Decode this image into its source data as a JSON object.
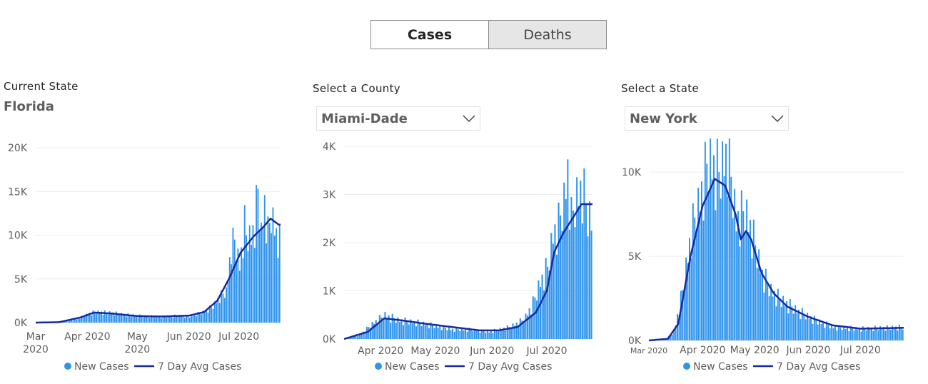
{
  "tabs": {
    "cases": "Cases",
    "deaths": "Deaths"
  },
  "panels": {
    "florida": {
      "label": "Current State",
      "value": "Florida"
    },
    "county": {
      "label": "Select a County",
      "value": "Miami-Dade"
    },
    "state": {
      "label": "Select a State",
      "value": "New York"
    }
  },
  "legend": {
    "bars": "New Cases",
    "line": "7 Day Avg Cases"
  },
  "colors": {
    "bar": "#2f94ec",
    "line": "#162a9e",
    "grid": "#ececec"
  },
  "chart_data": [
    {
      "type": "bar",
      "title": "",
      "start_date": "2020-03-01",
      "end_date": "2020-07-25",
      "ylim": [
        0,
        20000
      ],
      "yticks": [
        0,
        5000,
        10000,
        15000,
        20000
      ],
      "ytick_labels": [
        "0K",
        "5K",
        "10K",
        "15K",
        "20K"
      ],
      "xticks": [
        {
          "date": "2020-03-01",
          "label": [
            "Mar",
            "2020"
          ]
        },
        {
          "date": "2020-04-01",
          "label": [
            "Apr 2020"
          ]
        },
        {
          "date": "2020-05-01",
          "label": [
            "May",
            "2020"
          ]
        },
        {
          "date": "2020-06-01",
          "label": [
            "Jun 2020"
          ]
        },
        {
          "date": "2020-07-01",
          "label": [
            "Jul 2020"
          ]
        }
      ],
      "series": [
        {
          "name": "New Cases",
          "kind": "bar",
          "points": [
            [
              "2020-03-01",
              0
            ],
            [
              "2020-03-15",
              30
            ],
            [
              "2020-03-25",
              400
            ],
            [
              "2020-04-01",
              1000
            ],
            [
              "2020-04-05",
              1250
            ],
            [
              "2020-04-15",
              1150
            ],
            [
              "2020-04-25",
              900
            ],
            [
              "2020-05-05",
              750
            ],
            [
              "2020-05-15",
              700
            ],
            [
              "2020-05-25",
              800
            ],
            [
              "2020-06-01",
              700
            ],
            [
              "2020-06-10",
              1300
            ],
            [
              "2020-06-15",
              1900
            ],
            [
              "2020-06-19",
              3000
            ],
            [
              "2020-06-23",
              3600
            ],
            [
              "2020-06-26",
              8900
            ],
            [
              "2020-06-28",
              9500
            ],
            [
              "2020-07-01",
              6600
            ],
            [
              "2020-07-04",
              11400
            ],
            [
              "2020-07-05",
              10000
            ],
            [
              "2020-07-08",
              9900
            ],
            [
              "2020-07-10",
              11400
            ],
            [
              "2020-07-12",
              15300
            ],
            [
              "2020-07-14",
              10200
            ],
            [
              "2020-07-16",
              13900
            ],
            [
              "2020-07-18",
              10300
            ],
            [
              "2020-07-20",
              12500
            ],
            [
              "2020-07-23",
              10300
            ],
            [
              "2020-07-25",
              9400
            ]
          ]
        },
        {
          "name": "7 Day Avg Cases",
          "kind": "line",
          "points": [
            [
              "2020-03-01",
              0
            ],
            [
              "2020-03-15",
              50
            ],
            [
              "2020-03-28",
              600
            ],
            [
              "2020-04-05",
              1150
            ],
            [
              "2020-04-15",
              1050
            ],
            [
              "2020-05-01",
              750
            ],
            [
              "2020-05-15",
              700
            ],
            [
              "2020-06-01",
              800
            ],
            [
              "2020-06-10",
              1200
            ],
            [
              "2020-06-18",
              2500
            ],
            [
              "2020-06-25",
              5000
            ],
            [
              "2020-07-02",
              8000
            ],
            [
              "2020-07-10",
              9900
            ],
            [
              "2020-07-16",
              11000
            ],
            [
              "2020-07-20",
              11900
            ],
            [
              "2020-07-25",
              11200
            ]
          ]
        }
      ]
    },
    {
      "type": "bar",
      "title": "",
      "start_date": "2020-03-12",
      "end_date": "2020-07-25",
      "ylim": [
        0,
        4000
      ],
      "yticks": [
        0,
        1000,
        2000,
        3000,
        4000
      ],
      "ytick_labels": [
        "0K",
        "1K",
        "2K",
        "3K",
        "4K"
      ],
      "xticks": [
        {
          "date": "2020-04-01",
          "label": [
            "Apr 2020"
          ]
        },
        {
          "date": "2020-05-01",
          "label": [
            "May 2020"
          ]
        },
        {
          "date": "2020-06-01",
          "label": [
            "Jun 2020"
          ]
        },
        {
          "date": "2020-07-01",
          "label": [
            "Jul 2020"
          ]
        }
      ],
      "series": [
        {
          "name": "New Cases",
          "kind": "bar",
          "points": [
            [
              "2020-03-12",
              0
            ],
            [
              "2020-03-20",
              80
            ],
            [
              "2020-03-28",
              350
            ],
            [
              "2020-04-03",
              500
            ],
            [
              "2020-04-10",
              400
            ],
            [
              "2020-04-20",
              350
            ],
            [
              "2020-04-30",
              280
            ],
            [
              "2020-05-10",
              200
            ],
            [
              "2020-05-20",
              200
            ],
            [
              "2020-05-30",
              150
            ],
            [
              "2020-06-10",
              250
            ],
            [
              "2020-06-18",
              400
            ],
            [
              "2020-06-23",
              750
            ],
            [
              "2020-06-27",
              1200
            ],
            [
              "2020-07-01",
              1500
            ],
            [
              "2020-07-04",
              2200
            ],
            [
              "2020-07-07",
              2400
            ],
            [
              "2020-07-10",
              2900
            ],
            [
              "2020-07-12",
              3550
            ],
            [
              "2020-07-14",
              2500
            ],
            [
              "2020-07-17",
              3000
            ],
            [
              "2020-07-20",
              3200
            ],
            [
              "2020-07-23",
              2600
            ],
            [
              "2020-07-25",
              2500
            ]
          ]
        },
        {
          "name": "7 Day Avg Cases",
          "kind": "line",
          "points": [
            [
              "2020-03-12",
              0
            ],
            [
              "2020-03-25",
              150
            ],
            [
              "2020-04-03",
              430
            ],
            [
              "2020-04-12",
              390
            ],
            [
              "2020-04-25",
              320
            ],
            [
              "2020-05-10",
              250
            ],
            [
              "2020-05-25",
              180
            ],
            [
              "2020-06-05",
              180
            ],
            [
              "2020-06-15",
              250
            ],
            [
              "2020-06-25",
              550
            ],
            [
              "2020-07-01",
              1000
            ],
            [
              "2020-07-05",
              1800
            ],
            [
              "2020-07-10",
              2200
            ],
            [
              "2020-07-15",
              2500
            ],
            [
              "2020-07-20",
              2800
            ],
            [
              "2020-07-25",
              2800
            ]
          ]
        }
      ]
    },
    {
      "type": "bar",
      "title": "",
      "start_date": "2020-03-01",
      "end_date": "2020-07-25",
      "ylim": [
        0,
        12000
      ],
      "yticks": [
        0,
        5000,
        10000
      ],
      "ytick_labels": [
        "0K",
        "5K",
        "10K"
      ],
      "xticks": [
        {
          "date": "2020-03-01",
          "label": [
            "Mar 2020"
          ],
          "small": true
        },
        {
          "date": "2020-04-01",
          "label": [
            "Apr 2020"
          ]
        },
        {
          "date": "2020-05-01",
          "label": [
            "May 2020"
          ]
        },
        {
          "date": "2020-06-01",
          "label": [
            "Jun 2020"
          ]
        },
        {
          "date": "2020-07-01",
          "label": [
            "Jul 2020"
          ]
        }
      ],
      "series": [
        {
          "name": "New Cases",
          "kind": "bar",
          "points": [
            [
              "2020-03-01",
              0
            ],
            [
              "2020-03-10",
              50
            ],
            [
              "2020-03-15",
              500
            ],
            [
              "2020-03-20",
              3000
            ],
            [
              "2020-03-25",
              6500
            ],
            [
              "2020-03-30",
              8500
            ],
            [
              "2020-04-03",
              10500
            ],
            [
              "2020-04-05",
              10800
            ],
            [
              "2020-04-10",
              10000
            ],
            [
              "2020-04-15",
              11400
            ],
            [
              "2020-04-20",
              7200
            ],
            [
              "2020-04-25",
              7800
            ],
            [
              "2020-04-29",
              6500
            ],
            [
              "2020-05-05",
              4000
            ],
            [
              "2020-05-10",
              3000
            ],
            [
              "2020-05-15",
              2500
            ],
            [
              "2020-05-25",
              1800
            ],
            [
              "2020-06-05",
              1200
            ],
            [
              "2020-06-15",
              800
            ],
            [
              "2020-06-30",
              700
            ],
            [
              "2020-07-10",
              750
            ],
            [
              "2020-07-25",
              800
            ]
          ]
        },
        {
          "name": "7 Day Avg Cases",
          "kind": "line",
          "points": [
            [
              "2020-03-01",
              0
            ],
            [
              "2020-03-12",
              100
            ],
            [
              "2020-03-18",
              1000
            ],
            [
              "2020-03-25",
              5000
            ],
            [
              "2020-04-01",
              8000
            ],
            [
              "2020-04-08",
              9600
            ],
            [
              "2020-04-14",
              9200
            ],
            [
              "2020-04-20",
              7500
            ],
            [
              "2020-04-23",
              6000
            ],
            [
              "2020-04-26",
              6500
            ],
            [
              "2020-04-29",
              6000
            ],
            [
              "2020-05-05",
              4000
            ],
            [
              "2020-05-12",
              2800
            ],
            [
              "2020-05-20",
              2000
            ],
            [
              "2020-06-01",
              1400
            ],
            [
              "2020-06-15",
              900
            ],
            [
              "2020-07-01",
              700
            ],
            [
              "2020-07-25",
              750
            ]
          ]
        }
      ]
    }
  ]
}
